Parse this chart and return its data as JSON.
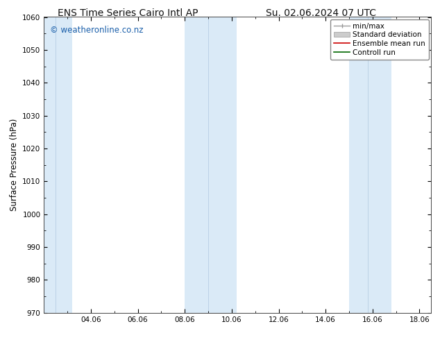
{
  "title_left": "ENS Time Series Cairo Intl AP",
  "title_right": "Su. 02.06.2024 07 UTC",
  "ylabel": "Surface Pressure (hPa)",
  "ylim": [
    970,
    1060
  ],
  "yticks": [
    970,
    980,
    990,
    1000,
    1010,
    1020,
    1030,
    1040,
    1050,
    1060
  ],
  "xlim_start": 2.0,
  "xlim_end": 18.5,
  "xtick_labels": [
    "04.06",
    "06.06",
    "08.06",
    "10.06",
    "12.06",
    "14.06",
    "16.06",
    "18.06"
  ],
  "xtick_positions": [
    4,
    6,
    8,
    10,
    12,
    14,
    16,
    18
  ],
  "shaded_bands": [
    {
      "xmin": 2.0,
      "xmax": 2.5,
      "xmin2": 2.5,
      "xmax2": 3.2
    },
    {
      "xmin": 8.0,
      "xmax": 9.0,
      "xmin2": 9.0,
      "xmax2": 10.2
    },
    {
      "xmin": 15.0,
      "xmax": 15.8,
      "xmin2": 15.8,
      "xmax2": 16.8
    }
  ],
  "shade_color": "#daeaf7",
  "shade_color2": "#cde0f0",
  "watermark": "© weatheronline.co.nz",
  "watermark_color": "#1a5faa",
  "bg_color": "#ffffff",
  "plot_bg_color": "#ffffff",
  "legend_items": [
    {
      "label": "min/max",
      "color": "#aaaaaa"
    },
    {
      "label": "Standard deviation",
      "color": "#cccccc"
    },
    {
      "label": "Ensemble mean run",
      "color": "#cc0000"
    },
    {
      "label": "Controll run",
      "color": "#006600"
    }
  ],
  "font_family": "DejaVu Sans",
  "title_fontsize": 10,
  "tick_fontsize": 7.5,
  "label_fontsize": 8.5,
  "watermark_fontsize": 8.5,
  "legend_fontsize": 7.5
}
